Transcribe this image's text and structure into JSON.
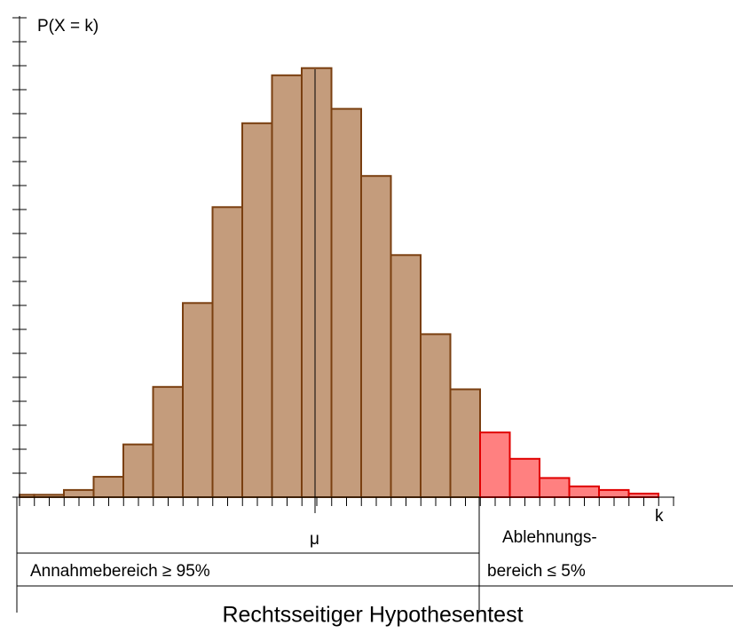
{
  "chart_data": {
    "type": "bar",
    "title": "Rechtsseitiger Hypothesentest",
    "y_label": "P(X = k)",
    "x_label": "k",
    "mean_label": "μ",
    "annotations": [
      "Annahmebereich  ≥ 95%",
      "Ablehnungs-",
      "bereich ≤ 5%"
    ],
    "categories": [
      null,
      null,
      null,
      null,
      null,
      null,
      null,
      null,
      null,
      null,
      null,
      null,
      null,
      null,
      null,
      null,
      null,
      null,
      null,
      null,
      null,
      null
    ],
    "values": [
      0.1,
      0.1,
      0.3,
      0.85,
      2.2,
      4.6,
      8.1,
      12.1,
      15.6,
      17.6,
      17.9,
      16.2,
      13.4,
      10.1,
      6.8,
      4.5,
      2.7,
      1.6,
      0.8,
      0.45,
      0.3,
      0.15
    ],
    "bar_colors": [
      "#c49c7c",
      "#c49c7c",
      "#c49c7c",
      "#c49c7c",
      "#c49c7c",
      "#c49c7c",
      "#c49c7c",
      "#c49c7c",
      "#c49c7c",
      "#c49c7c",
      "#c49c7c",
      "#c49c7c",
      "#c49c7c",
      "#c49c7c",
      "#c49c7c",
      "#c49c7c",
      "#ff8080",
      "#ff8080",
      "#ff8080",
      "#ff8080",
      "#ff8080",
      "#ff8080"
    ],
    "edge_colors": [
      "#7a3f10",
      "#7a3f10",
      "#7a3f10",
      "#7a3f10",
      "#7a3f10",
      "#7a3f10",
      "#7a3f10",
      "#7a3f10",
      "#7a3f10",
      "#7a3f10",
      "#7a3f10",
      "#7a3f10",
      "#7a3f10",
      "#7a3f10",
      "#7a3f10",
      "#7a3f10",
      "#e00000",
      "#e00000",
      "#e00000",
      "#e00000",
      "#e00000",
      "#e00000"
    ],
    "ylim": [
      0,
      20
    ],
    "yticks": [
      0,
      1,
      2,
      3,
      4,
      5,
      6,
      7,
      8,
      9,
      10,
      11,
      12,
      13,
      14,
      15,
      16,
      17,
      18,
      19,
      20
    ]
  }
}
